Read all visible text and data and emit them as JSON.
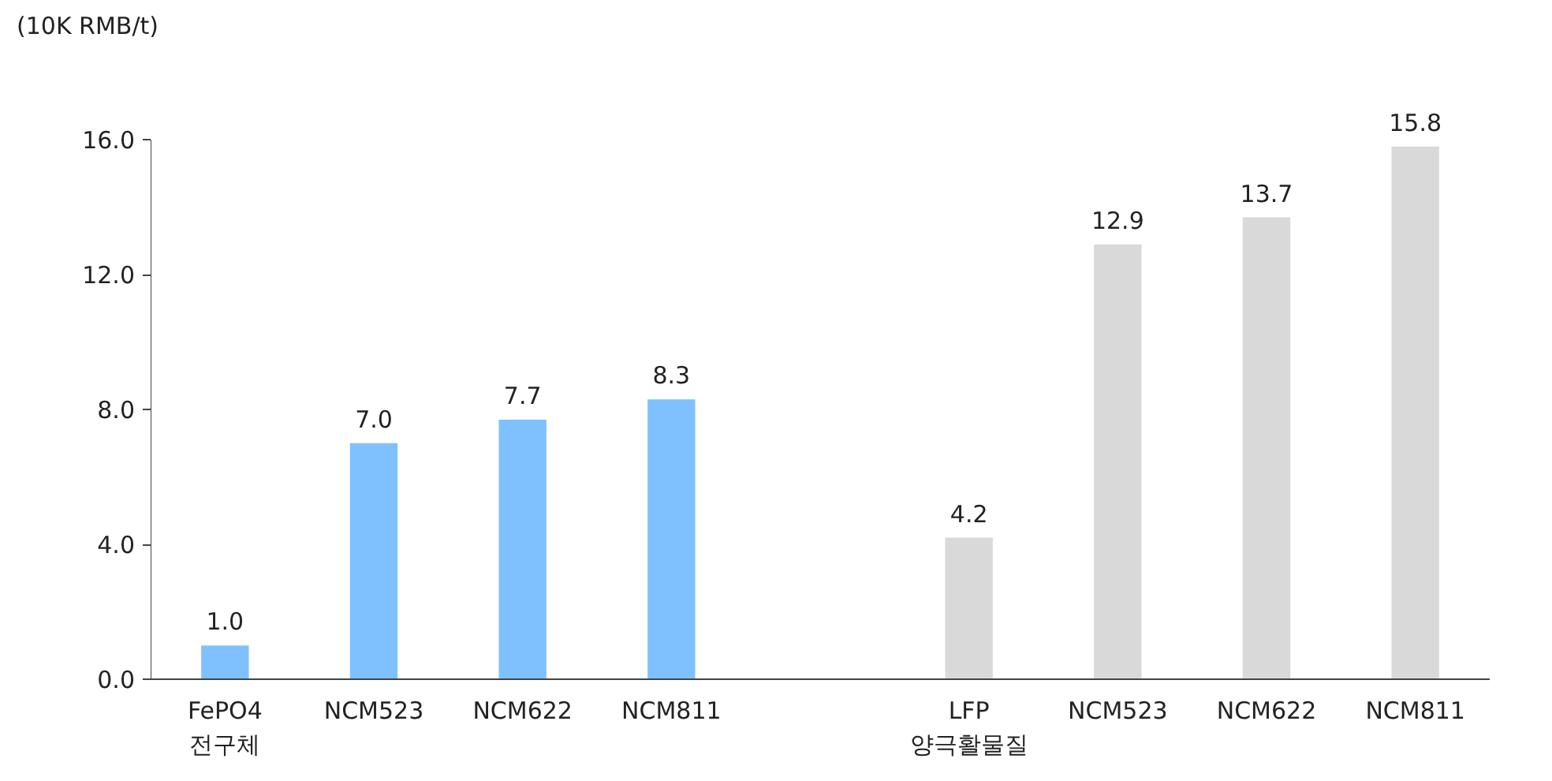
{
  "chart_data": {
    "type": "bar",
    "ylabel": "(10K RMB/t)",
    "categories": [
      "FePO4\n전구체",
      "NCM523",
      "NCM622",
      "NCM811",
      null,
      "LFP\n양극활물질",
      "NCM523",
      "NCM622",
      "NCM811"
    ],
    "values": [
      1.0,
      7.0,
      7.7,
      8.3,
      null,
      4.2,
      12.9,
      13.7,
      15.8
    ],
    "colors": [
      "#7fc1ff",
      "#7fc1ff",
      "#7fc1ff",
      "#7fc1ff",
      "#7fc1ff",
      "#d9d9d9",
      "#d9d9d9",
      "#d9d9d9",
      "#d9d9d9"
    ],
    "ylim": [
      0,
      16
    ],
    "yticks": [
      {
        "value": 0,
        "label": "0.0"
      },
      {
        "value": 4,
        "label": "4.0"
      },
      {
        "value": 8,
        "label": "8.0"
      },
      {
        "value": 12,
        "label": "12.0"
      },
      {
        "value": 16,
        "label": "16.0"
      }
    ],
    "value_labels": [
      "1.0",
      "7.0",
      "7.7",
      "8.3",
      null,
      "4.2",
      "12.9",
      "13.7",
      "15.8"
    ],
    "grid": false
  }
}
